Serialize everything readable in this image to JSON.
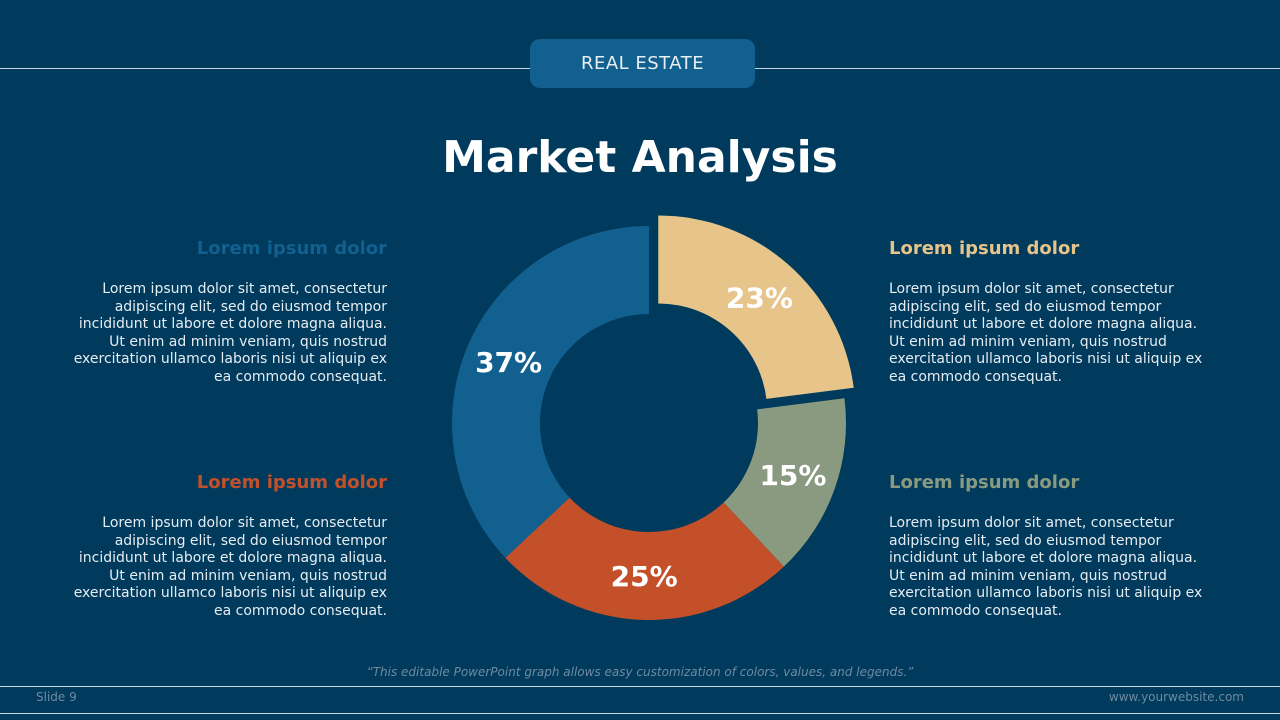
{
  "header": {
    "tag": "REAL ESTATE",
    "title": "Market Analysis"
  },
  "blocks": [
    {
      "heading": "Lorem ipsum dolor",
      "body": "Lorem ipsum dolor sit amet, consectetur\nadipiscing elit, sed do eiusmod tempor\nincididunt ut labore et dolore magna aliqua.\nUt enim ad minim veniam, quis nostrud\nexercitation ullamco laboris nisi ut aliquip ex\nea commodo consequat."
    },
    {
      "heading": "Lorem ipsum dolor",
      "body": "Lorem ipsum dolor sit amet, consectetur\nadipiscing elit, sed do eiusmod tempor\nincididunt ut labore et dolore magna aliqua.\nUt enim ad minim veniam, quis nostrud\nexercitation ullamco laboris nisi ut aliquip ex\nea commodo consequat."
    },
    {
      "heading": "Lorem ipsum dolor",
      "body": "Lorem ipsum dolor sit amet, consectetur\nadipiscing elit, sed do eiusmod tempor\nincididunt ut labore et dolore magna aliqua.\nUt enim ad minim veniam, quis nostrud\nexercitation ullamco laboris nisi ut aliquip ex\nea commodo consequat."
    },
    {
      "heading": "Lorem ipsum dolor",
      "body": "Lorem ipsum dolor sit amet, consectetur\nadipiscing elit, sed do eiusmod tempor\nincididunt ut labore et dolore magna aliqua.\nUt enim ad minim veniam, quis nostrud\nexercitation ullamco laboris nisi ut aliquip ex\nea commodo consequat."
    }
  ],
  "chart_data": {
    "type": "pie",
    "variant": "donut",
    "slices": [
      {
        "value": 23,
        "label": "23%",
        "color": "#e6c48a",
        "exploded": true
      },
      {
        "value": 15,
        "label": "15%",
        "color": "#8a9a80",
        "exploded": false
      },
      {
        "value": 25,
        "label": "25%",
        "color": "#c4502a",
        "exploded": false
      },
      {
        "value": 37,
        "label": "37%",
        "color": "#12608f",
        "exploded": false
      }
    ],
    "start": "top, clockwise"
  },
  "footer": {
    "caption": "“This editable PowerPoint graph allows easy customization of colors, values, and legends.”",
    "slide": "Slide 9",
    "website": "www.yourwebsite.com"
  }
}
